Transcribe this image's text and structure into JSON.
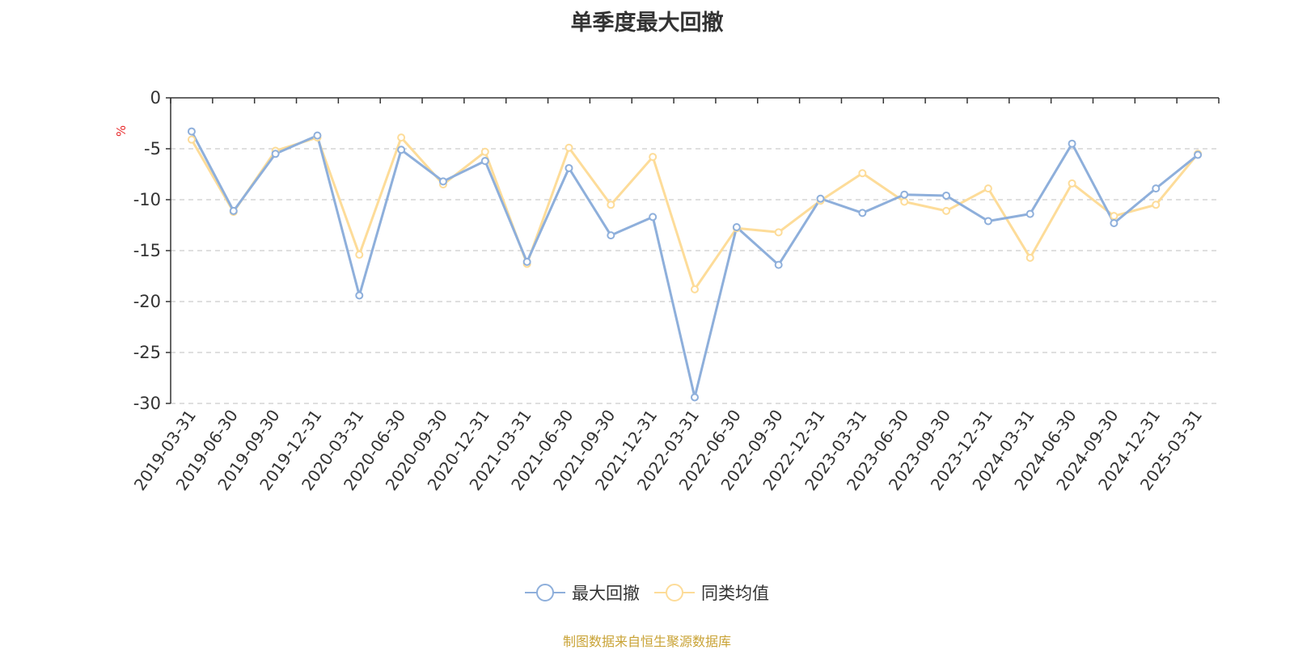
{
  "chart_data": {
    "type": "line",
    "title": "单季度最大回撤",
    "ylabel": "%",
    "xlabel": "",
    "ylim": [
      -30,
      0
    ],
    "yticks": [
      0,
      -5,
      -10,
      -15,
      -20,
      -25,
      -30
    ],
    "grid": true,
    "legend_position": "bottom-center",
    "categories": [
      "2019-03-31",
      "2019-06-30",
      "2019-09-30",
      "2019-12-31",
      "2020-03-31",
      "2020-06-30",
      "2020-09-30",
      "2020-12-31",
      "2021-03-31",
      "2021-06-30",
      "2021-09-30",
      "2021-12-31",
      "2022-03-31",
      "2022-06-30",
      "2022-09-30",
      "2022-12-31",
      "2023-03-31",
      "2023-06-30",
      "2023-09-30",
      "2023-12-31",
      "2024-03-31",
      "2024-06-30",
      "2024-09-30",
      "2024-12-31",
      "2025-03-31"
    ],
    "series": [
      {
        "name": "最大回撤",
        "color": "#8eafdb",
        "values": [
          -3.3,
          -11.1,
          -5.5,
          -3.7,
          -19.4,
          -5.1,
          -8.2,
          -6.2,
          -16.1,
          -6.9,
          -13.5,
          -11.7,
          -29.4,
          -12.7,
          -16.4,
          -9.9,
          -11.3,
          -9.5,
          -9.6,
          -12.1,
          -11.4,
          -4.5,
          -12.3,
          -8.9,
          -5.6
        ]
      },
      {
        "name": "同类均值",
        "color": "#fddc99",
        "values": [
          -4.1,
          -11.2,
          -5.2,
          -3.9,
          -15.4,
          -3.9,
          -8.5,
          -5.3,
          -16.3,
          -4.9,
          -10.5,
          -5.8,
          -18.8,
          -12.8,
          -13.2,
          -10.1,
          -7.4,
          -10.2,
          -11.1,
          -8.9,
          -15.7,
          -8.4,
          -11.6,
          -10.5,
          -5.5
        ]
      }
    ]
  },
  "source_text": "制图数据来自恒生聚源数据库",
  "colors": {
    "axis": "#333333",
    "grid": "#cccccc",
    "ylabel": "#e8292b",
    "source": "#c9a336"
  }
}
